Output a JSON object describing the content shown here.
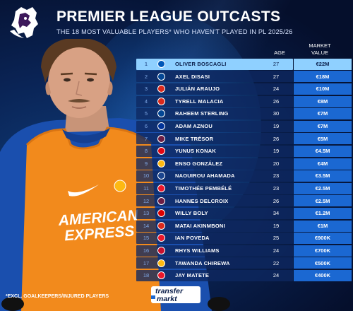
{
  "header": {
    "title": "PREMIER LEAGUE OUTCASTS",
    "subtitle": "THE 18 MOST VALUABLE PLAYERS* WHO HAVEN'T PLAYED IN PL 2025/26"
  },
  "columns": {
    "age": "AGE",
    "market_value_line1": "MARKET",
    "market_value_line2": "VALUE"
  },
  "sponsor": {
    "line1": "AMERICAN",
    "line2": "EXPRESS"
  },
  "footnote": "*EXCL. GOALKEEPERS/INJURED PLAYERS",
  "brand": {
    "line1": "transfer",
    "line2": "markt"
  },
  "players": [
    {
      "rank": "1",
      "name": "OLIVER BOSCAGLI",
      "age": "27",
      "value": "€22M",
      "crest_color": "#0057b8"
    },
    {
      "rank": "2",
      "name": "AXEL DISASI",
      "age": "27",
      "value": "€18M",
      "crest_color": "#034694"
    },
    {
      "rank": "3",
      "name": "JULIÁN ARAUJO",
      "age": "24",
      "value": "€10M",
      "crest_color": "#da291c"
    },
    {
      "rank": "4",
      "name": "TYRELL MALACIA",
      "age": "26",
      "value": "€8M",
      "crest_color": "#da291c"
    },
    {
      "rank": "5",
      "name": "RAHEEM STERLING",
      "age": "30",
      "value": "€7M",
      "crest_color": "#034694"
    },
    {
      "rank": "6",
      "name": "ADAM AZNOU",
      "age": "19",
      "value": "€7M",
      "crest_color": "#003399"
    },
    {
      "rank": "7",
      "name": "MIKE TRÉSOR",
      "age": "26",
      "value": "€5M",
      "crest_color": "#6c1d45"
    },
    {
      "rank": "8",
      "name": "YUNUS KONAK",
      "age": "19",
      "value": "€4.5M",
      "crest_color": "#e30613"
    },
    {
      "rank": "9",
      "name": "ENSO GONZÁLEZ",
      "age": "20",
      "value": "€4M",
      "crest_color": "#fdb913"
    },
    {
      "rank": "10",
      "name": "NAOUIROU AHAMADA",
      "age": "23",
      "value": "€3.5M",
      "crest_color": "#1b458f"
    },
    {
      "rank": "11",
      "name": "TIMOTHÉE PEMBÉLÉ",
      "age": "23",
      "value": "€2.5M",
      "crest_color": "#eb172b"
    },
    {
      "rank": "12",
      "name": "HANNES DELCROIX",
      "age": "26",
      "value": "€2.5M",
      "crest_color": "#6c1d45"
    },
    {
      "rank": "13",
      "name": "WILLY BOLY",
      "age": "34",
      "value": "€1.2M",
      "crest_color": "#dd0000"
    },
    {
      "rank": "14",
      "name": "MATAI AKINMBONI",
      "age": "19",
      "value": "€1M",
      "crest_color": "#da291c"
    },
    {
      "rank": "15",
      "name": "IAN POVEDA",
      "age": "25",
      "value": "€900K",
      "crest_color": "#eb172b"
    },
    {
      "rank": "16",
      "name": "RHYS WILLIAMS",
      "age": "24",
      "value": "€700K",
      "crest_color": "#c8102e"
    },
    {
      "rank": "17",
      "name": "TAWANDA CHIREWA",
      "age": "22",
      "value": "€500K",
      "crest_color": "#fdb913"
    },
    {
      "rank": "18",
      "name": "JAY MATETE",
      "age": "24",
      "value": "€400K",
      "crest_color": "#eb172b"
    }
  ]
}
